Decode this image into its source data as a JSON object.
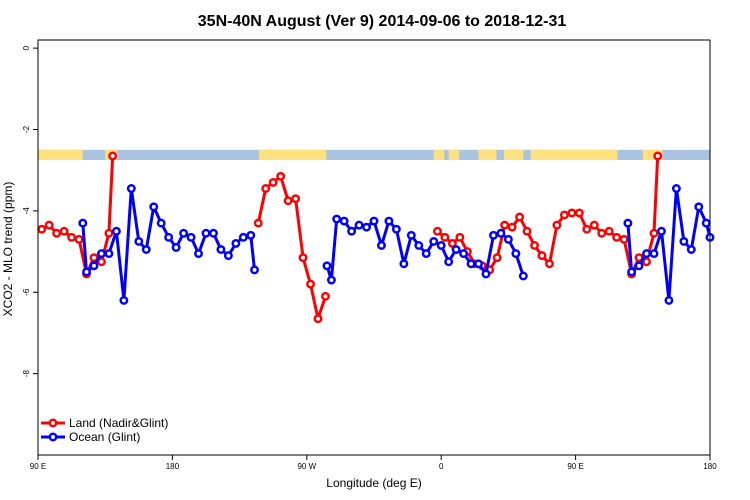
{
  "chart_data": {
    "type": "line",
    "title": "35N-40N August (Ver 9)   2014-09-06 to 2018-12-31",
    "xlabel": "Longitude (deg E)",
    "ylabel": "XCO2 - MLO trend (ppm)",
    "xlim": [
      90,
      540
    ],
    "ylim": [
      -10,
      0.2
    ],
    "x_ticks": [
      {
        "value": 90,
        "label": "90 E"
      },
      {
        "value": 180,
        "label": "180"
      },
      {
        "value": 270,
        "label": "90 W"
      },
      {
        "value": 360,
        "label": "0"
      },
      {
        "value": 450,
        "label": "90 E"
      },
      {
        "value": 540,
        "label": "180"
      }
    ],
    "y_ticks": [
      {
        "value": 0,
        "label": "0"
      },
      {
        "value": -2,
        "label": "-2"
      },
      {
        "value": -4,
        "label": "-4"
      },
      {
        "value": -6,
        "label": "-6"
      },
      {
        "value": -8,
        "label": "-8"
      }
    ],
    "legend_position": "bottom-left",
    "series": [
      {
        "name": "Land (Nadir&Glint)",
        "color": "#ff0000",
        "segments": [
          [
            [
              92.5,
              -4.45
            ],
            [
              97.5,
              -4.35
            ],
            [
              102.5,
              -4.55
            ],
            [
              107.5,
              -4.5
            ],
            [
              112.5,
              -4.65
            ],
            [
              117.5,
              -4.7
            ],
            [
              122.5,
              -5.55
            ],
            [
              127.5,
              -5.15
            ],
            [
              132.5,
              -5.25
            ],
            [
              137.5,
              -4.55
            ],
            [
              140,
              -2.65
            ]
          ],
          [
            [
              237.5,
              -4.3
            ],
            [
              242.5,
              -3.45
            ],
            [
              247.5,
              -3.3
            ],
            [
              252.5,
              -3.15
            ],
            [
              257.5,
              -3.75
            ],
            [
              262.5,
              -3.7
            ],
            [
              267.5,
              -5.15
            ],
            [
              272.5,
              -5.8
            ],
            [
              277.5,
              -6.65
            ],
            [
              282.5,
              -6.1
            ]
          ],
          [
            [
              357.5,
              -4.5
            ],
            [
              362.5,
              -4.65
            ],
            [
              367.5,
              -4.8
            ],
            [
              372.5,
              -4.65
            ],
            [
              377.5,
              -5.0
            ],
            [
              382.5,
              -5.3
            ],
            [
              387.5,
              -5.35
            ],
            [
              392.5,
              -5.45
            ],
            [
              397.5,
              -5.15
            ],
            [
              402.5,
              -4.35
            ],
            [
              407.5,
              -4.4
            ],
            [
              412.5,
              -4.15
            ],
            [
              417.5,
              -4.5
            ],
            [
              422.5,
              -4.85
            ],
            [
              427.5,
              -5.1
            ],
            [
              432.5,
              -5.3
            ],
            [
              437.5,
              -4.35
            ],
            [
              442.5,
              -4.1
            ],
            [
              447.5,
              -4.05
            ],
            [
              452.5,
              -4.05
            ],
            [
              457.5,
              -4.45
            ],
            [
              462.5,
              -4.35
            ],
            [
              467.5,
              -4.55
            ],
            [
              472.5,
              -4.5
            ],
            [
              477.5,
              -4.65
            ],
            [
              482.5,
              -4.7
            ],
            [
              487.5,
              -5.55
            ],
            [
              492.5,
              -5.15
            ],
            [
              497.5,
              -5.25
            ],
            [
              502.5,
              -4.55
            ],
            [
              505,
              -2.65
            ]
          ]
        ]
      },
      {
        "name": "Ocean (Glint)",
        "color": "#0000ff",
        "segments": [
          [
            [
              120,
              -4.3
            ],
            [
              122.5,
              -5.5
            ],
            [
              127.5,
              -5.35
            ],
            [
              132.5,
              -5.05
            ],
            [
              137.5,
              -5.05
            ],
            [
              142.5,
              -4.5
            ],
            [
              147.5,
              -6.2
            ],
            [
              152.5,
              -3.45
            ],
            [
              157.5,
              -4.75
            ],
            [
              162.5,
              -4.95
            ],
            [
              167.5,
              -3.9
            ],
            [
              172.5,
              -4.3
            ],
            [
              177.5,
              -4.65
            ],
            [
              182.5,
              -4.9
            ],
            [
              187.5,
              -4.55
            ],
            [
              192.5,
              -4.65
            ],
            [
              197.5,
              -5.05
            ],
            [
              202.5,
              -4.55
            ],
            [
              207.5,
              -4.55
            ],
            [
              212.5,
              -4.95
            ],
            [
              217.5,
              -5.1
            ],
            [
              222.5,
              -4.8
            ],
            [
              227.5,
              -4.65
            ],
            [
              232.5,
              -4.6
            ],
            [
              235,
              -5.45
            ]
          ],
          [
            [
              283.5,
              -5.35
            ],
            [
              286.5,
              -5.7
            ],
            [
              290,
              -4.2
            ],
            [
              295,
              -4.25
            ],
            [
              300,
              -4.5
            ],
            [
              305,
              -4.35
            ],
            [
              310,
              -4.4
            ],
            [
              315,
              -4.25
            ],
            [
              320,
              -4.85
            ],
            [
              325,
              -4.25
            ],
            [
              330,
              -4.45
            ],
            [
              335,
              -5.3
            ],
            [
              340,
              -4.6
            ],
            [
              345,
              -4.85
            ],
            [
              350,
              -5.05
            ],
            [
              355,
              -4.75
            ],
            [
              360,
              -4.85
            ],
            [
              365,
              -5.25
            ],
            [
              370,
              -4.95
            ],
            [
              375,
              -5.05
            ],
            [
              380,
              -5.3
            ],
            [
              385,
              -5.3
            ],
            [
              390,
              -5.55
            ],
            [
              395,
              -4.6
            ],
            [
              400,
              -4.55
            ],
            [
              405,
              -4.7
            ],
            [
              410,
              -5.05
            ],
            [
              415,
              -5.6
            ]
          ],
          [
            [
              485,
              -4.3
            ],
            [
              487.5,
              -5.5
            ],
            [
              492.5,
              -5.35
            ],
            [
              497.5,
              -5.05
            ],
            [
              502.5,
              -5.05
            ],
            [
              507.5,
              -4.5
            ],
            [
              512.5,
              -6.2
            ],
            [
              517.5,
              -3.45
            ],
            [
              522.5,
              -4.75
            ],
            [
              527.5,
              -4.95
            ],
            [
              532.5,
              -3.9
            ],
            [
              537.5,
              -4.3
            ],
            [
              540,
              -4.65
            ]
          ]
        ]
      }
    ],
    "land_mask": {
      "y_range": [
        -2.5,
        -2.75
      ],
      "land_color": "#ffe080",
      "ocean_color": "#a8c4e0",
      "land_ranges": [
        [
          90,
          120
        ],
        [
          135,
          143
        ],
        [
          238,
          283
        ],
        [
          355,
          362
        ],
        [
          365,
          372
        ],
        [
          385,
          397
        ],
        [
          402,
          415
        ],
        [
          420,
          478
        ],
        [
          495,
          508
        ]
      ]
    }
  }
}
